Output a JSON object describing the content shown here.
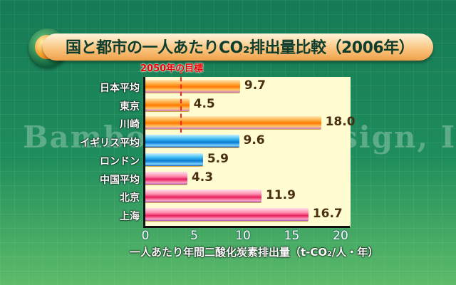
{
  "chart_data": {
    "type": "bar",
    "orientation": "horizontal",
    "title": "国と都市の一人あたりCO₂排出量比較（2006年）",
    "xlabel": "一人あたり年間二酸化炭素排出量（t-CO₂/人・年）",
    "ylabel": "",
    "xlim": [
      0,
      21
    ],
    "xticks": [
      "0",
      "5",
      "10",
      "15",
      "20"
    ],
    "categories": [
      "日本平均",
      "東京",
      "川崎",
      "イギリス平均",
      "ロンドン",
      "中国平均",
      "北京",
      "上海"
    ],
    "values": [
      9.7,
      4.5,
      18.0,
      9.6,
      5.9,
      4.3,
      11.9,
      16.7
    ],
    "labels": [
      "9.7",
      "4.5",
      "18.0",
      "9.6",
      "5.9",
      "4.3",
      "11.9",
      "16.7"
    ],
    "groups": [
      "japan",
      "japan",
      "japan",
      "uk",
      "uk",
      "china",
      "china",
      "china"
    ],
    "group_colors": {
      "japan": "#ff7a00",
      "uk": "#0a78d0",
      "china": "#e8205e"
    },
    "target": {
      "label": "2050年の目標",
      "value": 3.6,
      "color": "#ff2020"
    }
  },
  "watermark": "Bamboo Moon Design, Inc."
}
